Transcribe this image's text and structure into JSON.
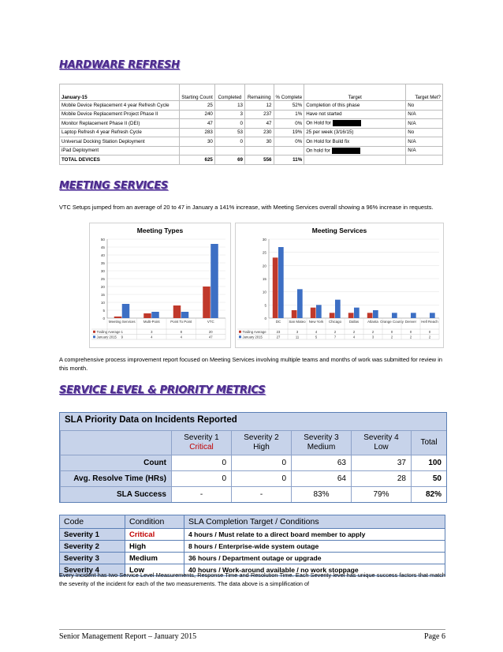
{
  "hardware": {
    "title": "HARDWARE REFRESH",
    "headers": [
      "January-15",
      "Starting Count",
      "Completed",
      "Remaining",
      "% Complete",
      "Target",
      "Target Met?"
    ],
    "rows": [
      [
        "Mobile Device Replacement 4 year Refresh Cycle",
        "25",
        "13",
        "12",
        "52%",
        "Completion of this phase",
        "No"
      ],
      [
        "Mobile Device Replacement Project Phase II",
        "240",
        "3",
        "237",
        "1%",
        "Have not started",
        "N/A"
      ],
      [
        "Monitor Replacement Phase II (DEI)",
        "47",
        "0",
        "47",
        "0%",
        "On Hold for",
        "N/A"
      ],
      [
        "Laptop Refresh 4 year Refresh Cycle",
        "283",
        "53",
        "230",
        "19%",
        "25 per week (3/16/15)",
        "No"
      ],
      [
        "Universal Docking Station Deployment",
        "30",
        "0",
        "30",
        "0%",
        "On Hold for Build fix",
        "N/A"
      ],
      [
        "iPad Deployment",
        "",
        "",
        "",
        "",
        "On hold for",
        "N/A"
      ]
    ],
    "total": [
      "TOTAL DEVICES",
      "625",
      "69",
      "556",
      "11%",
      "",
      ""
    ]
  },
  "meeting": {
    "title": "MEETING SERVICES",
    "intro": "VTC Setups jumped from an average of 20 to 47 in January a 141% increase, with Meeting Services overall showing a 96% increase in requests.",
    "after": "A comprehensive process improvement report focused on Meeting Services involving multiple teams and months of work was submitted for review in this month."
  },
  "chart_data": [
    {
      "type": "bar",
      "title": "Meeting Types",
      "categories": [
        "Meeting Services",
        "Multi-Point",
        "Point To Point",
        "VTC"
      ],
      "series": [
        {
          "name": "Trailing Average",
          "values": [
            1,
            3,
            8,
            20
          ],
          "color": "#c0392b"
        },
        {
          "name": "January 2015",
          "values": [
            9,
            4,
            4,
            47
          ],
          "color": "#3d6fc4"
        }
      ],
      "ylim": [
        0,
        50
      ],
      "yticks": [
        0,
        5,
        10,
        15,
        20,
        25,
        30,
        35,
        40,
        45,
        50
      ]
    },
    {
      "type": "bar",
      "title": "Meeting Services",
      "categories": [
        "DC",
        "San Mateo",
        "New York",
        "Chicago",
        "Dallas",
        "Atlanta",
        "Orange County",
        "Denver",
        "Hell Reach"
      ],
      "series": [
        {
          "name": "Trailing Average",
          "values": [
            23,
            3,
            4,
            2,
            2,
            2,
            0,
            0,
            0
          ],
          "color": "#c0392b"
        },
        {
          "name": "January 2015",
          "values": [
            27,
            11,
            5,
            7,
            4,
            3,
            2,
            2,
            2
          ],
          "color": "#3d6fc4"
        }
      ],
      "ylim": [
        0,
        30
      ],
      "yticks": [
        0,
        5,
        10,
        15,
        20,
        25,
        30
      ]
    }
  ],
  "sla": {
    "section_title": "SERVICE LEVEL & PRIORITY METRICS",
    "caption": "SLA Priority Data on Incidents Reported",
    "columns": [
      {
        "line1": "Severity 1",
        "line2": "Critical"
      },
      {
        "line1": "Severity 2",
        "line2": "High"
      },
      {
        "line1": "Severity 3",
        "line2": "Medium"
      },
      {
        "line1": "Severity 4",
        "line2": "Low"
      },
      {
        "line1": "Total",
        "line2": ""
      }
    ],
    "rows": [
      {
        "label": "Count",
        "values": [
          "0",
          "0",
          "63",
          "37",
          "100"
        ]
      },
      {
        "label": "Avg. Resolve Time (HRs)",
        "values": [
          "0",
          "0",
          "64",
          "28",
          "50"
        ]
      },
      {
        "label": "SLA Success",
        "values": [
          "-",
          "-",
          "83%",
          "79%",
          "82%"
        ]
      }
    ]
  },
  "codes": {
    "headers": [
      "Code",
      "Condition",
      "SLA Completion Target / Conditions"
    ],
    "rows": [
      [
        "Severity 1",
        "Critical",
        "4 hours / Must relate to a direct board member to apply"
      ],
      [
        "Severity 2",
        "High",
        "8 hours / Enterprise-wide system outage"
      ],
      [
        "Severity 3",
        "Medium",
        "36 hours / Department outage or upgrade"
      ],
      [
        "Severity 4",
        "Low",
        "40 hours / Work-around available / no work stoppage"
      ]
    ],
    "note": "Every Incident has two Service Level Measurements, Response Time and Resolution Time. Each Severity level has unique success factors that match the severity of the incident for each of the two measurements. The data above is a simplification of"
  },
  "footer": {
    "left": "Senior Management Report – January 2015",
    "right": "Page 6"
  }
}
